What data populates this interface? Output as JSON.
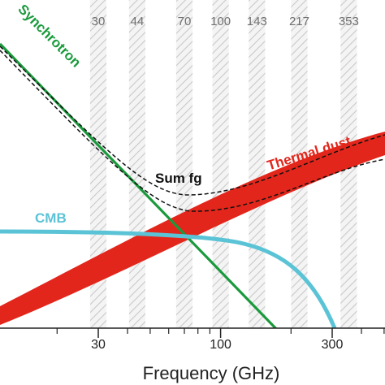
{
  "chart_data": {
    "type": "area",
    "xlabel": "Frequency (GHz)",
    "x_scale": "log",
    "xlim": [
      10,
      600
    ],
    "xticks": [
      30,
      100,
      300
    ],
    "tick_labels": [
      "30",
      "100",
      "300"
    ],
    "frequency_bands": [
      {
        "center": 30,
        "label": "30"
      },
      {
        "center": 44,
        "label": "44"
      },
      {
        "center": 70,
        "label": "70"
      },
      {
        "center": 100,
        "label": "100"
      },
      {
        "center": 143,
        "label": "143"
      },
      {
        "center": 217,
        "label": "217"
      },
      {
        "center": 353,
        "label": "353"
      }
    ],
    "series": [
      {
        "name": "Synchrotron",
        "color": "#1a9a3c"
      },
      {
        "name": "Thermal dust",
        "color": "#e3261b"
      },
      {
        "name": "CMB",
        "color": "#5bc3d6"
      },
      {
        "name": "Sum fg",
        "color": "#111111"
      }
    ]
  }
}
